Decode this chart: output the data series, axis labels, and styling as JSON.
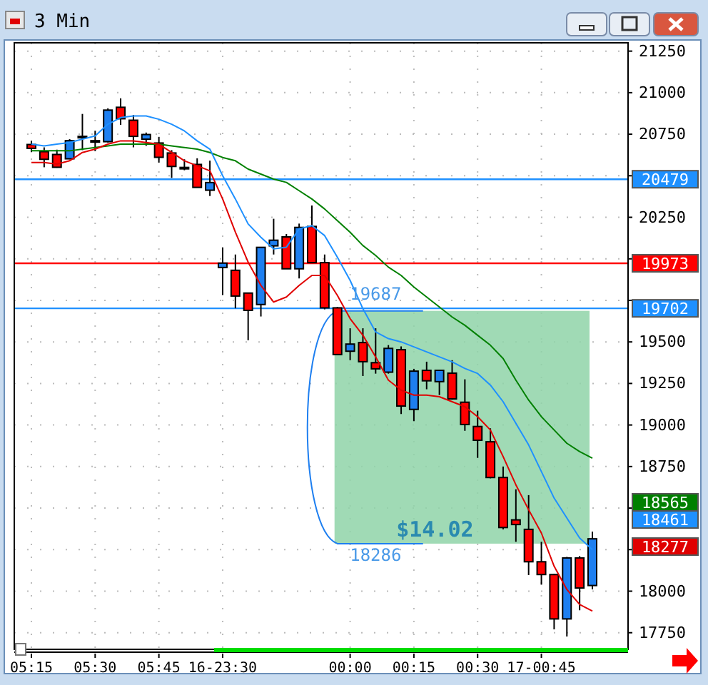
{
  "chart_data": {
    "type": "candlestick",
    "title": "3 Min",
    "categories": [
      "05:15",
      null,
      null,
      null,
      null,
      "05:30",
      null,
      null,
      null,
      null,
      "05:45",
      null,
      null,
      null,
      null,
      "16-23:30",
      null,
      null,
      null,
      null,
      null,
      null,
      null,
      null,
      null,
      "00:00",
      null,
      null,
      null,
      null,
      "00:15",
      null,
      null,
      null,
      null,
      "00:30",
      null,
      null,
      null,
      null,
      "17-00:45",
      null,
      null,
      null,
      null
    ],
    "ohlc": [
      [
        20688,
        20711,
        20642,
        20665
      ],
      [
        20645,
        20671,
        20551,
        20599
      ],
      [
        20628,
        20657,
        20548,
        20551
      ],
      [
        20602,
        20720,
        20599,
        20711
      ],
      [
        20737,
        20872,
        20654,
        20731
      ],
      [
        20711,
        20771,
        20648,
        20705
      ],
      [
        20705,
        20906,
        20700,
        20895
      ],
      [
        20912,
        20966,
        20806,
        20843
      ],
      [
        20834,
        20866,
        20671,
        20737
      ],
      [
        20720,
        20760,
        20680,
        20748
      ],
      [
        20697,
        20734,
        20579,
        20611
      ],
      [
        20637,
        20654,
        20487,
        20556
      ],
      [
        20550,
        20599,
        20533,
        20545
      ],
      [
        20568,
        20605,
        20430,
        20430
      ],
      [
        20413,
        20591,
        20378,
        20459
      ],
      [
        19948,
        20069,
        19782,
        19974
      ],
      [
        19931,
        20026,
        19702,
        19776
      ],
      [
        19794,
        19794,
        19510,
        19690
      ],
      [
        19725,
        20069,
        19653,
        20069
      ],
      [
        20078,
        20241,
        20026,
        20112
      ],
      [
        20132,
        20149,
        19940,
        19940
      ],
      [
        19940,
        20212,
        19882,
        20189
      ],
      [
        20195,
        20321,
        19977,
        19977
      ],
      [
        19977,
        20026,
        19696,
        19705
      ],
      [
        19705,
        19710,
        19424,
        19424
      ],
      [
        19444,
        19582,
        19390,
        19487
      ],
      [
        19496,
        19582,
        19295,
        19381
      ],
      [
        19375,
        19582,
        19309,
        19338
      ],
      [
        19318,
        19481,
        19309,
        19461
      ],
      [
        19453,
        19473,
        19066,
        19114
      ],
      [
        19094,
        19338,
        19023,
        19324
      ],
      [
        19329,
        19381,
        19215,
        19266
      ],
      [
        19261,
        19329,
        19180,
        19329
      ],
      [
        19312,
        19390,
        19152,
        19157
      ],
      [
        19137,
        19275,
        18965,
        19003
      ],
      [
        18991,
        19086,
        18802,
        18908
      ],
      [
        18899,
        18980,
        18679,
        18684
      ],
      [
        18684,
        18750,
        18372,
        18383
      ],
      [
        18429,
        18613,
        18297,
        18401
      ],
      [
        18372,
        18578,
        18097,
        18177
      ],
      [
        18177,
        18297,
        18039,
        18100
      ],
      [
        18100,
        18105,
        17770,
        17833
      ],
      [
        17833,
        18206,
        17727,
        18200
      ],
      [
        18200,
        18211,
        17885,
        18019
      ],
      [
        18034,
        18358,
        18011,
        18315
      ]
    ],
    "colors": [
      "#ff0000",
      "#ff0000",
      "#ff0000",
      "#1e7ff0",
      "#ff0000",
      "#ff0000",
      "#1e7ff0",
      "#ff0000",
      "#ff0000",
      "#1e7ff0",
      "#ff0000",
      "#ff0000",
      "#ff0000",
      "#ff0000",
      "#1e7ff0",
      "#1e7ff0",
      "#ff0000",
      "#ff0000",
      "#1e7ff0",
      "#1e7ff0",
      "#ff0000",
      "#1e7ff0",
      "#ff0000",
      "#ff0000",
      "#ff0000",
      "#1e7ff0",
      "#ff0000",
      "#ff0000",
      "#1e7ff0",
      "#ff0000",
      "#1e7ff0",
      "#ff0000",
      "#1e7ff0",
      "#ff0000",
      "#ff0000",
      "#ff0000",
      "#ff0000",
      "#ff0000",
      "#ff0000",
      "#ff0000",
      "#ff0000",
      "#ff0000",
      "#1e7ff0",
      "#ff0000",
      "#1e7ff0"
    ],
    "series": [
      {
        "type": "line",
        "color": "#008000",
        "values": [
          20650,
          20650,
          20650,
          20650,
          20660,
          20670,
          20680,
          20690,
          20690,
          20690,
          20690,
          20680,
          20670,
          20660,
          20640,
          20610,
          20590,
          20540,
          20510,
          20480,
          20460,
          20410,
          20360,
          20300,
          20230,
          20160,
          20080,
          20020,
          19950,
          19900,
          19830,
          19770,
          19710,
          19650,
          19600,
          19540,
          19480,
          19400,
          19270,
          19150,
          19050,
          18970,
          18890,
          18840,
          18800
        ]
      },
      {
        "type": "line",
        "color": "#1e90ff",
        "values": [
          20690,
          20680,
          20690,
          20700,
          20720,
          20740,
          20810,
          20850,
          20860,
          20860,
          20840,
          20810,
          20770,
          20710,
          20660,
          20500,
          20360,
          20210,
          20130,
          20060,
          20070,
          20180,
          20200,
          20140,
          20010,
          19870,
          19700,
          19560,
          19520,
          19500,
          19470,
          19440,
          19410,
          19380,
          19340,
          19310,
          19240,
          19140,
          19010,
          18880,
          18720,
          18560,
          18440,
          18320,
          18250
        ]
      },
      {
        "type": "line",
        "color": "#e00000",
        "values": [
          20580,
          20580,
          20570,
          20590,
          20640,
          20660,
          20690,
          20710,
          20710,
          20700,
          20690,
          20640,
          20590,
          20560,
          20530,
          20360,
          20160,
          19980,
          19840,
          19740,
          19770,
          19840,
          19900,
          19900,
          19780,
          19640,
          19540,
          19410,
          19270,
          19210,
          19180,
          19180,
          19170,
          19140,
          19110,
          19050,
          18970,
          18810,
          18640,
          18490,
          18350,
          18150,
          18010,
          17920,
          17880
        ]
      }
    ],
    "ylim": [
      17650,
      21300
    ],
    "yticks": [
      21250,
      21000,
      20750,
      {
        "value": 20500,
        "label": null
      },
      20250,
      {
        "value": 20000,
        "label": null
      },
      {
        "value": 19750,
        "label": null
      },
      19500,
      19250,
      19000,
      18750,
      {
        "value": 18500,
        "label": null
      },
      {
        "value": 18250,
        "label": null
      },
      18000,
      17750
    ],
    "grid": true,
    "ref_lines": [
      {
        "axis": "y",
        "value": 20479,
        "label": "20479",
        "color": "#1e90ff"
      },
      {
        "axis": "y",
        "value": 19973,
        "label": "19973",
        "color": "#ff0000"
      },
      {
        "axis": "y",
        "value": 19702,
        "label": "19702",
        "color": "#1e90ff"
      }
    ],
    "bands": [
      {
        "axis": "y",
        "from": 18286,
        "to": 19687,
        "label": "$14.02",
        "color": "#8fd3a8"
      }
    ],
    "annotations": [
      {
        "text": "19687",
        "y": 19687
      },
      {
        "text": "18286",
        "y": 18286
      },
      "18565",
      "18461",
      "18277"
    ]
  }
}
